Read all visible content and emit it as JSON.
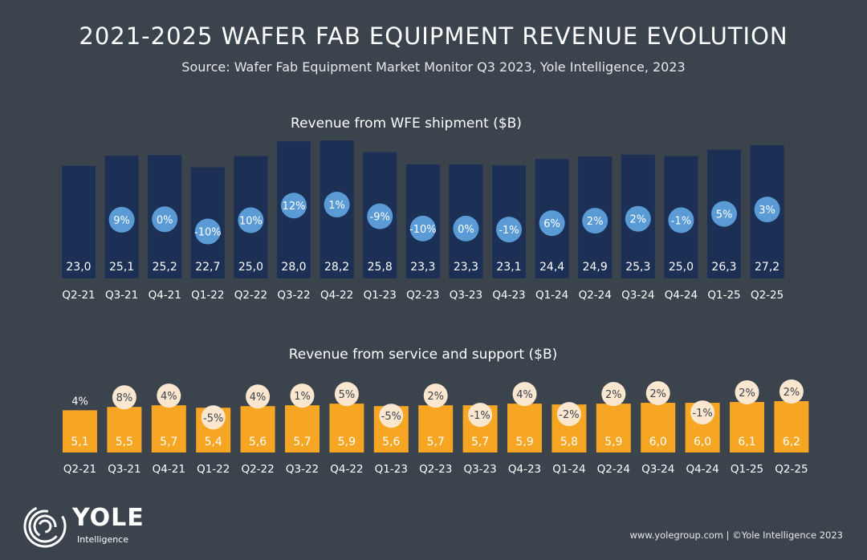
{
  "header": {
    "title": "2021-2025 WAFER FAB EQUIPMENT REVENUE EVOLUTION",
    "subtitle": "Source: Wafer Fab Equipment Market Monitor Q3 2023, Yole Intelligence, 2023"
  },
  "colors": {
    "background": "#3b434d",
    "shipment_bar": "#1c2f55",
    "shipment_bubble": "#5b9bd5",
    "service_bar": "#f6a623",
    "service_bubble": "#fbe6cf"
  },
  "chart_data": [
    {
      "type": "bar",
      "title": "Revenue from WFE shipment ($B)",
      "categories": [
        "Q2-21",
        "Q3-21",
        "Q4-21",
        "Q1-22",
        "Q2-22",
        "Q3-22",
        "Q4-22",
        "Q1-23",
        "Q2-23",
        "Q3-23",
        "Q4-23",
        "Q1-24",
        "Q2-24",
        "Q3-24",
        "Q4-24",
        "Q1-25",
        "Q2-25"
      ],
      "values": [
        23.0,
        25.1,
        25.2,
        22.7,
        25.0,
        28.0,
        28.2,
        25.8,
        23.3,
        23.3,
        23.1,
        24.4,
        24.9,
        25.3,
        25.0,
        26.3,
        27.2
      ],
      "value_labels": [
        "23,0",
        "25,1",
        "25,2",
        "22,7",
        "25,0",
        "28,0",
        "28,2",
        "25,8",
        "23,3",
        "23,3",
        "23,1",
        "24,4",
        "24,9",
        "25,3",
        "25,0",
        "26,3",
        "27,2"
      ],
      "growth_labels": [
        "",
        "9%",
        "0%",
        "-10%",
        "10%",
        "12%",
        "1%",
        "-9%",
        "-10%",
        "0%",
        "-1%",
        "6%",
        "2%",
        "2%",
        "-1%",
        "5%",
        "3%"
      ],
      "grid": false,
      "legend": "none"
    },
    {
      "type": "bar",
      "title": "Revenue from service and support ($B)",
      "categories": [
        "Q2-21",
        "Q3-21",
        "Q4-21",
        "Q1-22",
        "Q2-22",
        "Q3-22",
        "Q4-22",
        "Q1-23",
        "Q2-23",
        "Q3-23",
        "Q4-23",
        "Q1-24",
        "Q2-24",
        "Q3-24",
        "Q4-24",
        "Q1-25",
        "Q2-25"
      ],
      "values": [
        5.1,
        5.5,
        5.7,
        5.4,
        5.6,
        5.7,
        5.9,
        5.6,
        5.7,
        5.7,
        5.9,
        5.8,
        5.9,
        6.0,
        6.0,
        6.1,
        6.2
      ],
      "value_labels": [
        "5,1",
        "5,5",
        "5,7",
        "5,4",
        "5,6",
        "5,7",
        "5,9",
        "5,6",
        "5,7",
        "5,7",
        "5,9",
        "5,8",
        "5,9",
        "6,0",
        "6,0",
        "6,1",
        "6,2"
      ],
      "growth_labels": [
        "4%",
        "8%",
        "4%",
        "-5%",
        "4%",
        "1%",
        "5%",
        "-5%",
        "2%",
        "-1%",
        "4%",
        "-2%",
        "2%",
        "2%",
        "-1%",
        "2%",
        "2%"
      ],
      "grid": false,
      "legend": "none"
    }
  ],
  "logo": {
    "name": "YOLE",
    "sub": "Intelligence"
  },
  "footer": {
    "text": "www.yolegroup.com | ©Yole Intelligence 2023"
  }
}
